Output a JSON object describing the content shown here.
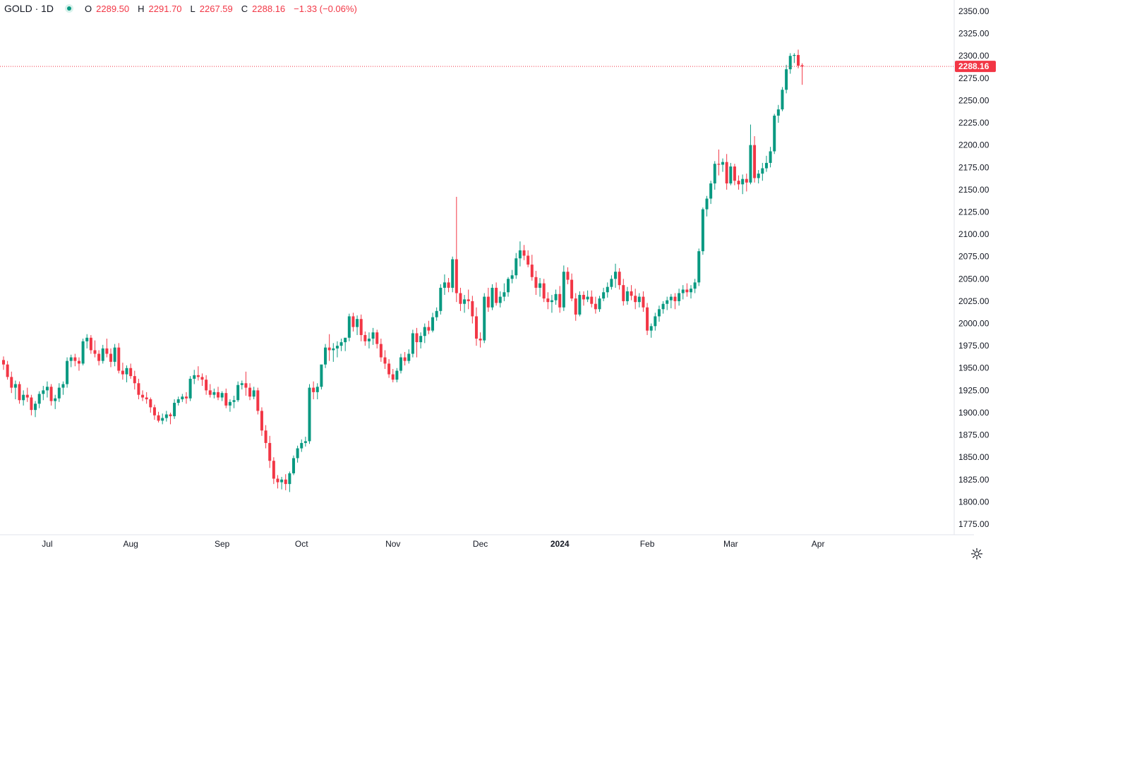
{
  "legend": {
    "symbol": "GOLD · 1D",
    "open_label": "O",
    "open": "2289.50",
    "high_label": "H",
    "high": "2291.70",
    "low_label": "L",
    "low": "2267.59",
    "close_label": "C",
    "close": "2288.16",
    "change": "−1.33 (−0.06%)",
    "status_color": "#089981"
  },
  "colors": {
    "up": "#089981",
    "down": "#f23645",
    "axis_text": "#131722",
    "border": "#e0e3eb"
  },
  "chart_data": {
    "type": "candlestick",
    "title": "",
    "xlabel": "",
    "ylabel": "",
    "ylim": [
      1765,
      2360
    ],
    "y_ticks": [
      "2350.00",
      "2325.00",
      "2300.00",
      "2275.00",
      "2250.00",
      "2225.00",
      "2200.00",
      "2175.00",
      "2150.00",
      "2125.00",
      "2100.00",
      "2075.00",
      "2050.00",
      "2025.00",
      "2000.00",
      "1975.00",
      "1950.00",
      "1925.00",
      "1900.00",
      "1875.00",
      "1850.00",
      "1825.00",
      "1800.00",
      "1775.00"
    ],
    "x_ticks": [
      {
        "label": "Jul",
        "index": 11
      },
      {
        "label": "Aug",
        "index": 32
      },
      {
        "label": "Sep",
        "index": 55
      },
      {
        "label": "Oct",
        "index": 75
      },
      {
        "label": "Nov",
        "index": 98
      },
      {
        "label": "Dec",
        "index": 120
      },
      {
        "label": "2024",
        "index": 140,
        "bold": true
      },
      {
        "label": "Feb",
        "index": 162
      },
      {
        "label": "Mar",
        "index": 183
      },
      {
        "label": "Apr",
        "index": 205
      }
    ],
    "last_price": "2288.16",
    "x_index_range": [
      0,
      230
    ],
    "candles": [
      [
        1959,
        1963,
        1948,
        1954
      ],
      [
        1954,
        1958,
        1937,
        1940
      ],
      [
        1940,
        1946,
        1922,
        1928
      ],
      [
        1928,
        1936,
        1915,
        1932
      ],
      [
        1932,
        1935,
        1910,
        1914
      ],
      [
        1914,
        1925,
        1908,
        1920
      ],
      [
        1920,
        1928,
        1912,
        1917
      ],
      [
        1917,
        1920,
        1897,
        1903
      ],
      [
        1903,
        1913,
        1895,
        1910
      ],
      [
        1910,
        1924,
        1905,
        1921
      ],
      [
        1921,
        1930,
        1914,
        1925
      ],
      [
        1925,
        1935,
        1917,
        1929
      ],
      [
        1929,
        1932,
        1908,
        1913
      ],
      [
        1913,
        1920,
        1904,
        1916
      ],
      [
        1916,
        1933,
        1912,
        1928
      ],
      [
        1928,
        1935,
        1920,
        1932
      ],
      [
        1932,
        1962,
        1928,
        1958
      ],
      [
        1958,
        1965,
        1951,
        1962
      ],
      [
        1962,
        1966,
        1952,
        1958
      ],
      [
        1958,
        1962,
        1947,
        1955
      ],
      [
        1955,
        1983,
        1953,
        1980
      ],
      [
        1980,
        1988,
        1972,
        1984
      ],
      [
        1984,
        1987,
        1966,
        1970
      ],
      [
        1970,
        1981,
        1962,
        1966
      ],
      [
        1966,
        1970,
        1953,
        1958
      ],
      [
        1958,
        1976,
        1955,
        1972
      ],
      [
        1972,
        1983,
        1962,
        1966
      ],
      [
        1966,
        1972,
        1951,
        1957
      ],
      [
        1957,
        1977,
        1952,
        1973
      ],
      [
        1973,
        1978,
        1944,
        1947
      ],
      [
        1947,
        1956,
        1937,
        1943
      ],
      [
        1943,
        1953,
        1934,
        1950
      ],
      [
        1950,
        1955,
        1938,
        1941
      ],
      [
        1941,
        1947,
        1926,
        1933
      ],
      [
        1933,
        1938,
        1915,
        1920
      ],
      [
        1920,
        1925,
        1913,
        1917
      ],
      [
        1917,
        1923,
        1910,
        1915
      ],
      [
        1915,
        1917,
        1900,
        1906
      ],
      [
        1906,
        1909,
        1892,
        1897
      ],
      [
        1897,
        1901,
        1889,
        1891
      ],
      [
        1891,
        1899,
        1887,
        1894
      ],
      [
        1894,
        1902,
        1890,
        1898
      ],
      [
        1898,
        1900,
        1887,
        1896
      ],
      [
        1896,
        1915,
        1893,
        1911
      ],
      [
        1911,
        1918,
        1908,
        1915
      ],
      [
        1915,
        1921,
        1912,
        1918
      ],
      [
        1918,
        1923,
        1910,
        1916
      ],
      [
        1916,
        1941,
        1913,
        1938
      ],
      [
        1938,
        1948,
        1932,
        1942
      ],
      [
        1942,
        1952,
        1936,
        1940
      ],
      [
        1940,
        1944,
        1930,
        1937
      ],
      [
        1937,
        1942,
        1920,
        1925
      ],
      [
        1925,
        1932,
        1917,
        1920
      ],
      [
        1920,
        1927,
        1916,
        1923
      ],
      [
        1923,
        1929,
        1914,
        1917
      ],
      [
        1917,
        1924,
        1913,
        1922
      ],
      [
        1922,
        1927,
        1905,
        1908
      ],
      [
        1908,
        1915,
        1901,
        1912
      ],
      [
        1912,
        1919,
        1905,
        1914
      ],
      [
        1914,
        1935,
        1912,
        1931
      ],
      [
        1931,
        1936,
        1926,
        1933
      ],
      [
        1933,
        1946,
        1919,
        1928
      ],
      [
        1928,
        1933,
        1914,
        1918
      ],
      [
        1918,
        1929,
        1915,
        1925
      ],
      [
        1925,
        1928,
        1898,
        1902
      ],
      [
        1902,
        1906,
        1874,
        1880
      ],
      [
        1880,
        1886,
        1860,
        1866
      ],
      [
        1866,
        1874,
        1838,
        1846
      ],
      [
        1846,
        1850,
        1820,
        1826
      ],
      [
        1826,
        1830,
        1815,
        1822
      ],
      [
        1822,
        1828,
        1814,
        1825
      ],
      [
        1825,
        1831,
        1813,
        1820
      ],
      [
        1820,
        1834,
        1811,
        1832
      ],
      [
        1832,
        1852,
        1830,
        1849
      ],
      [
        1849,
        1863,
        1844,
        1860
      ],
      [
        1860,
        1870,
        1856,
        1866
      ],
      [
        1866,
        1873,
        1862,
        1868
      ],
      [
        1868,
        1932,
        1865,
        1928
      ],
      [
        1928,
        1935,
        1915,
        1923
      ],
      [
        1923,
        1933,
        1915,
        1929
      ],
      [
        1929,
        1953,
        1926,
        1954
      ],
      [
        1954,
        1977,
        1950,
        1973
      ],
      [
        1973,
        1988,
        1958,
        1970
      ],
      [
        1970,
        1978,
        1957,
        1972
      ],
      [
        1972,
        1980,
        1962,
        1975
      ],
      [
        1975,
        1983,
        1969,
        1979
      ],
      [
        1979,
        1982,
        1969,
        1984
      ],
      [
        1984,
        2011,
        1980,
        2008
      ],
      [
        2008,
        2012,
        1991,
        1996
      ],
      [
        1996,
        2009,
        1987,
        2005
      ],
      [
        2005,
        2010,
        1980,
        1987
      ],
      [
        1987,
        1991,
        1975,
        1980
      ],
      [
        1980,
        1990,
        1972,
        1983
      ],
      [
        1983,
        1995,
        1976,
        1990
      ],
      [
        1990,
        1993,
        1972,
        1977
      ],
      [
        1977,
        1983,
        1957,
        1962
      ],
      [
        1962,
        1970,
        1949,
        1955
      ],
      [
        1955,
        1960,
        1939,
        1943
      ],
      [
        1943,
        1949,
        1934,
        1937
      ],
      [
        1937,
        1950,
        1934,
        1947
      ],
      [
        1947,
        1966,
        1944,
        1962
      ],
      [
        1962,
        1968,
        1953,
        1958
      ],
      [
        1958,
        1971,
        1955,
        1966
      ],
      [
        1966,
        1993,
        1962,
        1989
      ],
      [
        1989,
        1995,
        1962,
        1979
      ],
      [
        1979,
        1990,
        1972,
        1986
      ],
      [
        1986,
        2000,
        1978,
        1996
      ],
      [
        1996,
        2003,
        1988,
        1992
      ],
      [
        1992,
        2012,
        1990,
        2007
      ],
      [
        2007,
        2018,
        2003,
        2014
      ],
      [
        2014,
        2044,
        2010,
        2040
      ],
      [
        2040,
        2055,
        2032,
        2046
      ],
      [
        2046,
        2051,
        2035,
        2040
      ],
      [
        2040,
        2075,
        2035,
        2072
      ],
      [
        2072,
        2142,
        2024,
        2034
      ],
      [
        2034,
        2040,
        2014,
        2022
      ],
      [
        2022,
        2032,
        2012,
        2027
      ],
      [
        2027,
        2038,
        2016,
        2025
      ],
      [
        2025,
        2031,
        2000,
        2008
      ],
      [
        2008,
        2018,
        1975,
        1983
      ],
      [
        1983,
        1990,
        1973,
        1981
      ],
      [
        1981,
        2034,
        1978,
        2030
      ],
      [
        2030,
        2040,
        2013,
        2018
      ],
      [
        2018,
        2044,
        2015,
        2040
      ],
      [
        2040,
        2046,
        2020,
        2023
      ],
      [
        2023,
        2036,
        2018,
        2030
      ],
      [
        2030,
        2045,
        2025,
        2035
      ],
      [
        2035,
        2052,
        2030,
        2050
      ],
      [
        2050,
        2060,
        2045,
        2054
      ],
      [
        2054,
        2079,
        2050,
        2073
      ],
      [
        2073,
        2092,
        2064,
        2082
      ],
      [
        2082,
        2088,
        2071,
        2076
      ],
      [
        2076,
        2082,
        2063,
        2066
      ],
      [
        2066,
        2077,
        2048,
        2052
      ],
      [
        2052,
        2059,
        2032,
        2040
      ],
      [
        2040,
        2051,
        2030,
        2045
      ],
      [
        2045,
        2050,
        2024,
        2028
      ],
      [
        2028,
        2035,
        2016,
        2024
      ],
      [
        2024,
        2032,
        2012,
        2026
      ],
      [
        2026,
        2038,
        2021,
        2033
      ],
      [
        2033,
        2042,
        2012,
        2018
      ],
      [
        2018,
        2065,
        2014,
        2058
      ],
      [
        2058,
        2063,
        2044,
        2049
      ],
      [
        2049,
        2056,
        2025,
        2028
      ],
      [
        2028,
        2034,
        2003,
        2010
      ],
      [
        2010,
        2036,
        2008,
        2032
      ],
      [
        2032,
        2036,
        2020,
        2027
      ],
      [
        2027,
        2037,
        2024,
        2030
      ],
      [
        2030,
        2037,
        2018,
        2022
      ],
      [
        2022,
        2030,
        2011,
        2016
      ],
      [
        2016,
        2031,
        2013,
        2028
      ],
      [
        2028,
        2040,
        2025,
        2035
      ],
      [
        2035,
        2046,
        2029,
        2041
      ],
      [
        2041,
        2054,
        2038,
        2050
      ],
      [
        2050,
        2067,
        2040,
        2058
      ],
      [
        2058,
        2062,
        2038,
        2043
      ],
      [
        2043,
        2050,
        2020,
        2025
      ],
      [
        2025,
        2041,
        2021,
        2036
      ],
      [
        2036,
        2043,
        2026,
        2031
      ],
      [
        2031,
        2039,
        2016,
        2024
      ],
      [
        2024,
        2034,
        2018,
        2030
      ],
      [
        2030,
        2036,
        2013,
        2018
      ],
      [
        2018,
        2023,
        1987,
        1992
      ],
      [
        1992,
        2000,
        1984,
        1997
      ],
      [
        1997,
        2012,
        1992,
        2008
      ],
      [
        2008,
        2020,
        2002,
        2016
      ],
      [
        2016,
        2025,
        2011,
        2022
      ],
      [
        2022,
        2030,
        2015,
        2026
      ],
      [
        2026,
        2033,
        2017,
        2030
      ],
      [
        2030,
        2034,
        2016,
        2025
      ],
      [
        2025,
        2039,
        2020,
        2034
      ],
      [
        2034,
        2043,
        2027,
        2038
      ],
      [
        2038,
        2045,
        2030,
        2035
      ],
      [
        2035,
        2043,
        2028,
        2039
      ],
      [
        2039,
        2050,
        2034,
        2046
      ],
      [
        2046,
        2084,
        2042,
        2081
      ],
      [
        2081,
        2130,
        2077,
        2128
      ],
      [
        2128,
        2143,
        2120,
        2140
      ],
      [
        2140,
        2160,
        2134,
        2157
      ],
      [
        2157,
        2182,
        2150,
        2179
      ],
      [
        2179,
        2195,
        2166,
        2178
      ],
      [
        2178,
        2185,
        2170,
        2181
      ],
      [
        2181,
        2190,
        2150,
        2157
      ],
      [
        2157,
        2180,
        2155,
        2176
      ],
      [
        2176,
        2179,
        2155,
        2160
      ],
      [
        2160,
        2166,
        2150,
        2156
      ],
      [
        2156,
        2167,
        2145,
        2162
      ],
      [
        2162,
        2168,
        2148,
        2158
      ],
      [
        2158,
        2223,
        2156,
        2200
      ],
      [
        2200,
        2210,
        2158,
        2163
      ],
      [
        2163,
        2172,
        2157,
        2168
      ],
      [
        2168,
        2180,
        2160,
        2174
      ],
      [
        2174,
        2188,
        2170,
        2180
      ],
      [
        2180,
        2198,
        2175,
        2193
      ],
      [
        2193,
        2235,
        2190,
        2233
      ],
      [
        2233,
        2245,
        2225,
        2240
      ],
      [
        2240,
        2265,
        2238,
        2262
      ],
      [
        2262,
        2290,
        2258,
        2285
      ],
      [
        2285,
        2303,
        2280,
        2300
      ],
      [
        2300,
        2303,
        2292,
        2301
      ],
      [
        2301,
        2307,
        2286,
        2289
      ],
      [
        2289.5,
        2291.7,
        2267.59,
        2288.16
      ]
    ]
  }
}
